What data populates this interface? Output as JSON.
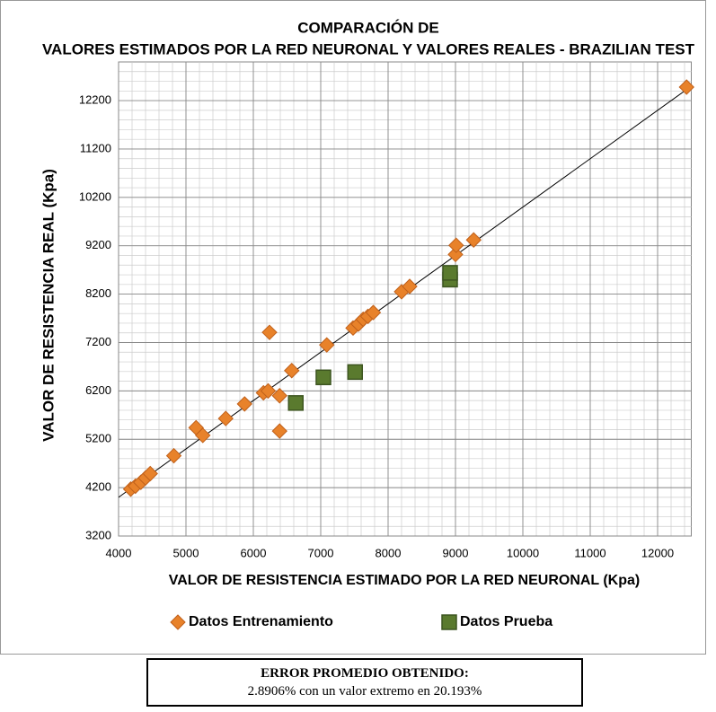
{
  "chart_data": {
    "type": "scatter",
    "title": "COMPARACIÓN DE VALORES ESTIMADOS POR LA RED NEURONAL Y VALORES REALES - BRAZILIAN TEST",
    "x_label": "VALOR  DE RESISTENCIA ESTIMADO POR LA RED NEURONAL (Kpa)",
    "y_label": "VALOR DE RESISTENCIA REAL (Kpa)",
    "xlim": [
      4000,
      12500
    ],
    "xticks": [
      4000,
      5000,
      6000,
      7000,
      8000,
      9000,
      10000,
      11000,
      12000
    ],
    "ylim": [
      3200,
      13000
    ],
    "yticks": [
      3200,
      4200,
      5200,
      6200,
      7200,
      8200,
      9200,
      10200,
      11200,
      12200
    ],
    "grid": true,
    "identity_line": true,
    "legend": "bottom",
    "series": [
      {
        "name": "Datos Entrenamiento",
        "color": "#e8822a",
        "marker": "diamond",
        "x": [
          4180,
          4250,
          4330,
          4400,
          4470,
          4820,
          5150,
          5250,
          5590,
          5870,
          6150,
          6220,
          6240,
          6390,
          6390,
          6570,
          7090,
          7480,
          7560,
          7630,
          7700,
          7780,
          8200,
          8320,
          9000,
          9010,
          9270,
          12430
        ],
        "values": [
          4170,
          4230,
          4310,
          4400,
          4490,
          4860,
          5440,
          5280,
          5630,
          5930,
          6160,
          6200,
          7410,
          6100,
          5370,
          6620,
          7150,
          7500,
          7580,
          7680,
          7740,
          7820,
          8250,
          8360,
          9020,
          9210,
          9320,
          12480
        ]
      },
      {
        "name": "Datos Prueba",
        "color": "#5a7a2e",
        "marker": "square",
        "x": [
          6630,
          7040,
          7510,
          8920,
          8920
        ],
        "values": [
          5950,
          6480,
          6590,
          8500,
          8640
        ]
      }
    ],
    "note_title": "ERROR PROMEDIO OBTENIDO:",
    "note_text": "2.8906% con un valor extremo en 20.193%"
  }
}
